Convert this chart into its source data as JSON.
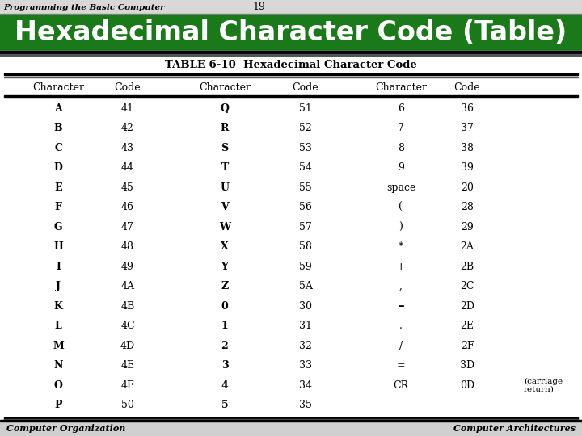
{
  "slide_title": "Hexadecimal Character Code (Table)",
  "slide_number": "19",
  "header_left": "Programming the Basic Computer",
  "footer_left": "Computer Organization",
  "footer_right": "Computer Architectures",
  "table_title": "TABLE 6-10  Hexadecimal Character Code",
  "col_headers": [
    "Character",
    "Code",
    "Character",
    "Code",
    "Character",
    "Code"
  ],
  "rows": [
    [
      "A",
      "41",
      "Q",
      "51",
      "6",
      "36"
    ],
    [
      "B",
      "42",
      "R",
      "52",
      "7",
      "37"
    ],
    [
      "C",
      "43",
      "S",
      "53",
      "8",
      "38"
    ],
    [
      "D",
      "44",
      "T",
      "54",
      "9",
      "39"
    ],
    [
      "E",
      "45",
      "U",
      "55",
      "space",
      "20"
    ],
    [
      "F",
      "46",
      "V",
      "56",
      "(",
      "28"
    ],
    [
      "G",
      "47",
      "W",
      "57",
      ")",
      "29"
    ],
    [
      "H",
      "48",
      "X",
      "58",
      "*",
      "2A"
    ],
    [
      "I",
      "49",
      "Y",
      "59",
      "+",
      "2B"
    ],
    [
      "J",
      "4A",
      "Z",
      "5A",
      ",",
      "2C"
    ],
    [
      "K",
      "4B",
      "0",
      "30",
      "–",
      "2D"
    ],
    [
      "L",
      "4C",
      "1",
      "31",
      ".",
      "2E"
    ],
    [
      "M",
      "4D",
      "2",
      "32",
      "/",
      "2F"
    ],
    [
      "N",
      "4E",
      "3",
      "33",
      "=",
      "3D"
    ],
    [
      "O",
      "4F",
      "4",
      "34",
      "CR",
      "0D"
    ],
    [
      "P",
      "50",
      "5",
      "35",
      "",
      ""
    ]
  ],
  "carriage_note": "(carriage\nreturn)",
  "bg_color": "#c8c8c8",
  "title_bg": "#1a7a1a",
  "title_color": "#ffffff",
  "table_bg": "#ffffff"
}
